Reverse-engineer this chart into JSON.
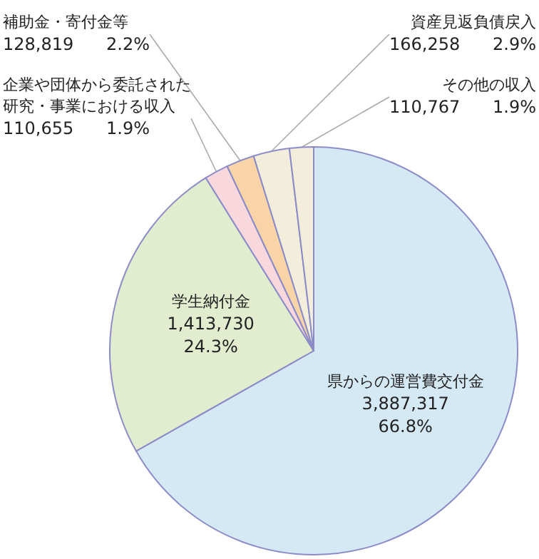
{
  "chart_data": {
    "type": "pie",
    "categories": [
      "県からの運営費交付金",
      "学生納付金",
      "企業や団体から委託された研究・事業における収入",
      "補助金・寄付金等",
      "資産見返負債戻入",
      "その他の収入"
    ],
    "values": [
      3887317,
      1413730,
      110655,
      128819,
      166258,
      110767
    ],
    "value_labels": [
      "3,887,317 66.8%",
      "1,413,730 24.3%",
      "110,655 1.9%",
      "128,819 2.2%",
      "166,258 2.9%",
      "110,767 1.9%"
    ],
    "colors": [
      "#d5e9f4",
      "#e2ecce",
      "#f8d8dc",
      "#f9d4a6",
      "#f3eddb",
      "#f3eddb"
    ]
  }
}
